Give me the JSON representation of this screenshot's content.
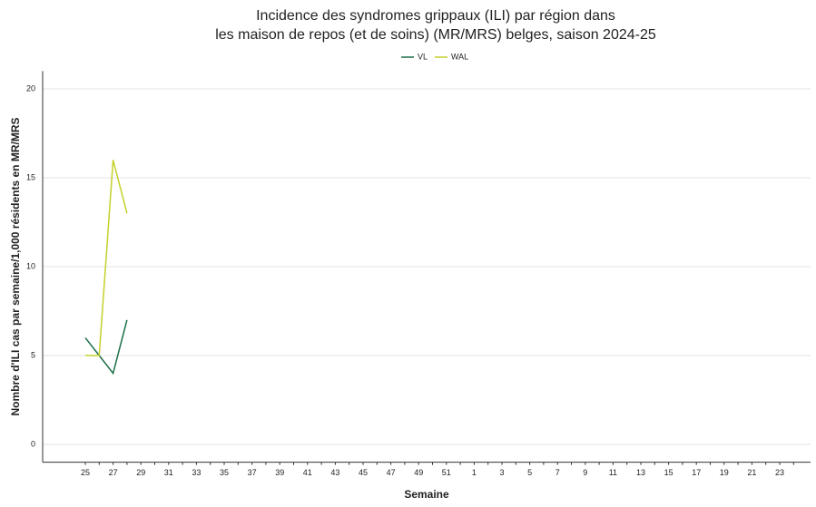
{
  "chart_data": {
    "type": "line",
    "title": [
      "Incidence des syndromes grippaux (ILI) par région dans",
      "les maison de repos (et de soins) (MR/MRS) belges, saison 2024-25"
    ],
    "x_label": "Semaine",
    "y_label": "Nombre d'ILI cas par semaine/1,000 résidents en MR/MRS",
    "categories": [
      "25",
      null,
      "27",
      null,
      "29",
      null,
      "31",
      null,
      "33",
      null,
      "35",
      null,
      "37",
      null,
      "39",
      null,
      "41",
      null,
      "43",
      null,
      "45",
      null,
      "47",
      null,
      "49",
      null,
      "51",
      null,
      "1",
      null,
      "3",
      null,
      "5",
      null,
      "7",
      null,
      "9",
      null,
      "11",
      null,
      "13",
      null,
      "15",
      null,
      "17",
      null,
      "19",
      null,
      "21",
      null,
      "23",
      null
    ],
    "series": [
      {
        "name": "VL",
        "color": "#1b7048",
        "values": [
          6,
          5,
          4,
          7,
          null,
          null,
          null,
          null,
          null,
          null,
          null,
          null,
          null,
          null,
          null,
          null,
          null,
          null,
          null,
          null,
          null,
          null,
          null,
          null,
          null,
          null,
          null,
          null,
          null,
          null,
          null,
          null,
          null,
          null,
          null,
          null,
          null,
          null,
          null,
          null,
          null,
          null,
          null,
          null,
          null,
          null,
          null,
          null,
          null,
          null,
          null,
          null
        ]
      },
      {
        "name": "WAL",
        "color": "#c5d02a",
        "values": [
          5,
          5,
          16,
          13,
          null,
          null,
          null,
          null,
          null,
          null,
          null,
          null,
          null,
          null,
          null,
          null,
          null,
          null,
          null,
          null,
          null,
          null,
          null,
          null,
          null,
          null,
          null,
          null,
          null,
          null,
          null,
          null,
          null,
          null,
          null,
          null,
          null,
          null,
          null,
          null,
          null,
          null,
          null,
          null,
          null,
          null,
          null,
          null,
          null,
          null,
          null,
          null
        ]
      }
    ],
    "ylim": [
      -1,
      21
    ],
    "yticks": [
      0,
      5,
      10,
      15,
      20
    ],
    "grid": true,
    "legend": "top"
  }
}
